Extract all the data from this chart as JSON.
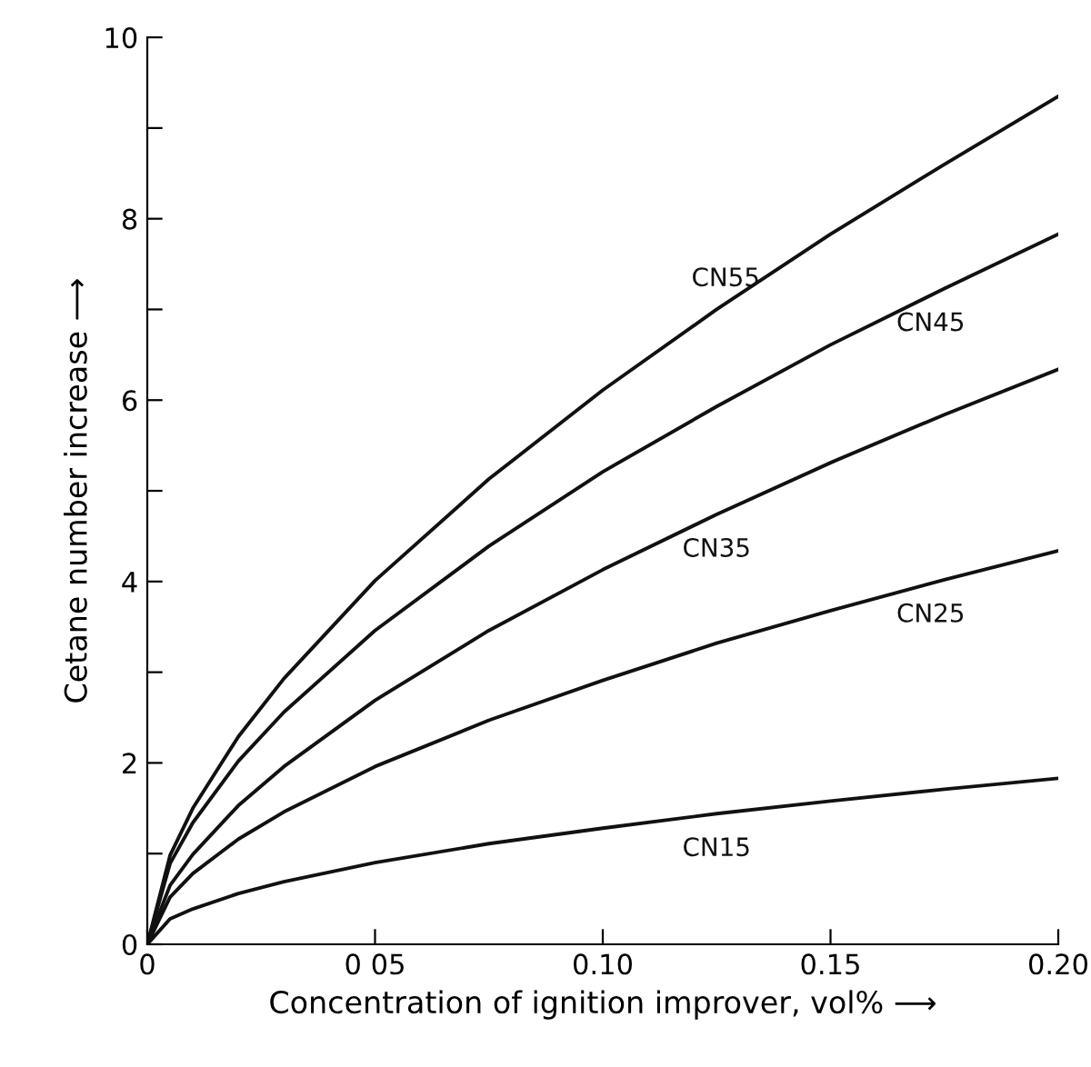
{
  "chart_data": {
    "type": "line",
    "xlabel": "Concentration of ignition improver, vol% ⟶",
    "ylabel": "Cetane number increase ⟶",
    "x": [
      0,
      0.005,
      0.01,
      0.02,
      0.03,
      0.05,
      0.075,
      0.1,
      0.125,
      0.15,
      0.175,
      0.2
    ],
    "series": [
      {
        "name": "CN55",
        "color": "#111111",
        "values": [
          0,
          0.98,
          1.5,
          2.29,
          2.93,
          4.01,
          5.13,
          6.11,
          7.0,
          7.83,
          8.6,
          9.35
        ]
      },
      {
        "name": "CN45",
        "color": "#111111",
        "values": [
          0,
          0.89,
          1.34,
          2.02,
          2.56,
          3.46,
          4.39,
          5.21,
          5.93,
          6.61,
          7.23,
          7.83
        ]
      },
      {
        "name": "CN35",
        "color": "#111111",
        "values": [
          0,
          0.65,
          0.99,
          1.53,
          1.96,
          2.69,
          3.46,
          4.13,
          4.74,
          5.31,
          5.84,
          6.34
        ]
      },
      {
        "name": "CN25",
        "color": "#111111",
        "values": [
          0,
          0.52,
          0.78,
          1.16,
          1.46,
          1.96,
          2.47,
          2.91,
          3.32,
          3.68,
          4.02,
          4.34
        ]
      },
      {
        "name": "CN15",
        "color": "#111111",
        "values": [
          0,
          0.28,
          0.39,
          0.56,
          0.69,
          0.9,
          1.11,
          1.28,
          1.44,
          1.58,
          1.71,
          1.83
        ]
      }
    ],
    "xlim": [
      0,
      0.2
    ],
    "xticks": [
      0,
      {
        "value": 0.05,
        "label": "0 05"
      },
      {
        "value": 0.1,
        "label": "0.10"
      },
      {
        "value": 0.15,
        "label": "0.15"
      },
      {
        "value": 0.2,
        "label": "0.20"
      }
    ],
    "ylim": [
      0,
      10
    ],
    "yticks": [
      0,
      {
        "value": 1,
        "label": null
      },
      2,
      {
        "value": 3,
        "label": null
      },
      4,
      {
        "value": 5,
        "label": null
      },
      6,
      {
        "value": 7,
        "label": null
      },
      8,
      {
        "value": 9,
        "label": null
      },
      10
    ],
    "grid": false,
    "legend": false,
    "marker": "none",
    "line_style": "solid"
  }
}
